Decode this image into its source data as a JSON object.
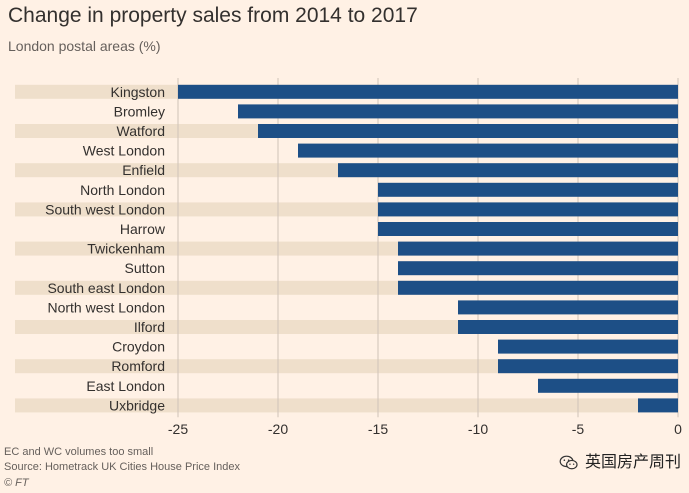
{
  "title": "Change in property sales from 2014 to 2017",
  "subtitle": "London postal areas (%)",
  "footer": {
    "note": "EC and WC volumes too small",
    "source": "Source: Hometrack UK Cities House Price Index",
    "credit": "© FT"
  },
  "watermark": {
    "text": "英国房产周刊",
    "icon": "wechat-icon"
  },
  "colors": {
    "background": "#fff1e5",
    "bar": "#1d4f86",
    "band": "#efdfcb",
    "grid": "#cfc3b8",
    "text": "#33302e"
  },
  "chart_data": {
    "type": "bar",
    "orientation": "horizontal",
    "categories": [
      "Kingston",
      "Bromley",
      "Watford",
      "West London",
      "Enfield",
      "North London",
      "South west London",
      "Harrow",
      "Twickenham",
      "Sutton",
      "South east London",
      "North west London",
      "Ilford",
      "Croydon",
      "Romford",
      "East London",
      "Uxbridge"
    ],
    "values": [
      -25,
      -22,
      -21,
      -19,
      -17,
      -15,
      -15,
      -15,
      -14,
      -14,
      -14,
      -11,
      -11,
      -9,
      -9,
      -7,
      -2
    ],
    "xlim": [
      -25,
      0
    ],
    "xticks": [
      "-25",
      "-20",
      "-15",
      "-10",
      "-5",
      "0"
    ],
    "grid": true,
    "alternating_bands": true
  }
}
